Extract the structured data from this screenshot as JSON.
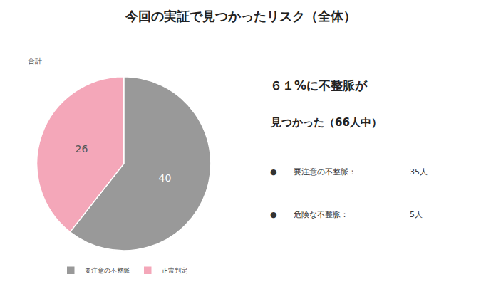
{
  "chart_data": {
    "type": "pie",
    "title": "今回の実証で見つかったリスク（全体）",
    "categories": [
      "要注意の不整脈",
      "正常判定"
    ],
    "values": [
      40,
      26
    ],
    "colors": [
      "#999999",
      "#f4a7b9"
    ],
    "data_labels": true,
    "legend": "bottom",
    "annotations": [
      "合計",
      "６１%に不整脈が",
      "見つかった（66人中）",
      "●",
      "要注意の不整脈：",
      "35人",
      "●",
      "危険な不整脈：",
      "5人"
    ]
  }
}
